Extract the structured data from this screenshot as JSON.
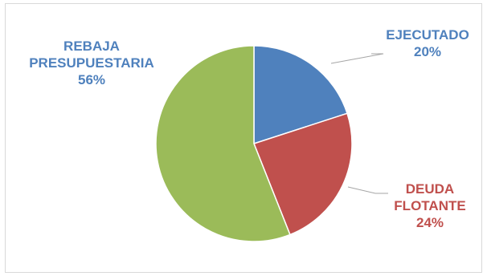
{
  "chart_data": {
    "type": "pie",
    "title": "",
    "slices": [
      {
        "name_lines": [
          "EJECUTADO"
        ],
        "value": 20,
        "label": "20%",
        "color": "#4f81bd",
        "label_color": "#4f81bd"
      },
      {
        "name_lines": [
          "DEUDA",
          "FLOTANTE"
        ],
        "value": 24,
        "label": "24%",
        "color": "#c0504d",
        "label_color": "#c0504d"
      },
      {
        "name_lines": [
          "REBAJA",
          "PRESUPUESTARIA"
        ],
        "value": 56,
        "label": "56%",
        "color": "#9bbb59",
        "label_color": "#4f81bd"
      }
    ]
  }
}
